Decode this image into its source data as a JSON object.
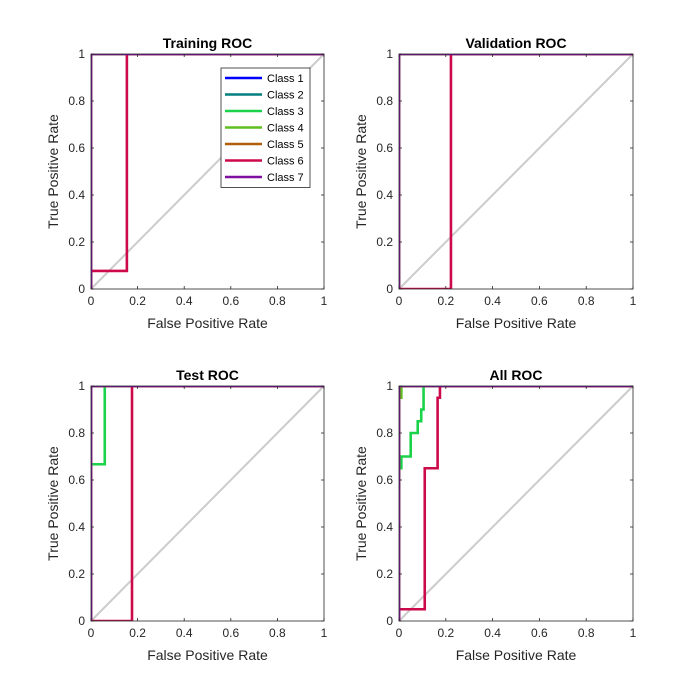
{
  "chart_data": [
    {
      "type": "line",
      "title": "Training ROC",
      "xlabel": "False Positive Rate",
      "ylabel": "True Positive Rate",
      "xlim": [
        0,
        1
      ],
      "ylim": [
        0,
        1
      ],
      "xticks": [
        "0",
        "0.2",
        "0.4",
        "0.6",
        "0.8",
        "1"
      ],
      "yticks": [
        "0",
        "0.2",
        "0.4",
        "0.6",
        "0.8",
        "1"
      ],
      "reference_line": {
        "x": [
          0,
          1
        ],
        "y": [
          0,
          1
        ],
        "color": "#cccccc"
      },
      "legend": {
        "placement": "top-right"
      },
      "series": [
        {
          "name": "Class 1",
          "color": "#0000ff",
          "x": [
            0,
            0,
            1
          ],
          "y": [
            0,
            1,
            1
          ]
        },
        {
          "name": "Class 2",
          "color": "#007f7f",
          "x": [
            0,
            0,
            1
          ],
          "y": [
            0,
            1,
            1
          ]
        },
        {
          "name": "Class 3",
          "color": "#1ad34a",
          "x": [
            0,
            0,
            1
          ],
          "y": [
            0,
            1,
            1
          ]
        },
        {
          "name": "Class 4",
          "color": "#5fbf1f",
          "x": [
            0,
            0,
            1
          ],
          "y": [
            0,
            1,
            1
          ]
        },
        {
          "name": "Class 5",
          "color": "#b0600c",
          "x": [
            0,
            0,
            1
          ],
          "y": [
            0,
            1,
            1
          ]
        },
        {
          "name": "Class 6",
          "color": "#cc0a4a",
          "x": [
            0,
            0,
            0.154,
            0.154,
            1
          ],
          "y": [
            0,
            0.077,
            0.077,
            1,
            1
          ]
        },
        {
          "name": "Class 7",
          "color": "#7f0f9f",
          "x": [
            0,
            0,
            1
          ],
          "y": [
            0,
            1,
            1
          ]
        }
      ]
    },
    {
      "type": "line",
      "title": "Validation ROC",
      "xlabel": "False Positive Rate",
      "ylabel": "True Positive Rate",
      "xlim": [
        0,
        1
      ],
      "ylim": [
        0,
        1
      ],
      "xticks": [
        "0",
        "0.2",
        "0.4",
        "0.6",
        "0.8",
        "1"
      ],
      "yticks": [
        "0",
        "0.2",
        "0.4",
        "0.6",
        "0.8",
        "1"
      ],
      "reference_line": {
        "x": [
          0,
          1
        ],
        "y": [
          0,
          1
        ],
        "color": "#cccccc"
      },
      "series": [
        {
          "name": "Class 1",
          "color": "#0000ff",
          "x": [
            0,
            0,
            1
          ],
          "y": [
            0,
            1,
            1
          ]
        },
        {
          "name": "Class 2",
          "color": "#007f7f",
          "x": [
            0,
            0,
            1
          ],
          "y": [
            0,
            1,
            1
          ]
        },
        {
          "name": "Class 3",
          "color": "#1ad34a",
          "x": [
            0,
            0,
            1
          ],
          "y": [
            0,
            1,
            1
          ]
        },
        {
          "name": "Class 4",
          "color": "#5fbf1f",
          "x": [
            0,
            0,
            1
          ],
          "y": [
            0,
            1,
            1
          ]
        },
        {
          "name": "Class 5",
          "color": "#b0600c",
          "x": [
            0,
            0,
            1
          ],
          "y": [
            0,
            1,
            1
          ]
        },
        {
          "name": "Class 6",
          "color": "#cc0a4a",
          "x": [
            0,
            0.222,
            0.222,
            1
          ],
          "y": [
            0,
            0,
            1,
            1
          ]
        },
        {
          "name": "Class 7",
          "color": "#7f0f9f",
          "x": [
            0,
            0,
            1
          ],
          "y": [
            0,
            1,
            1
          ]
        }
      ]
    },
    {
      "type": "line",
      "title": "Test ROC",
      "xlabel": "False Positive Rate",
      "ylabel": "True Positive Rate",
      "xlim": [
        0,
        1
      ],
      "ylim": [
        0,
        1
      ],
      "xticks": [
        "0",
        "0.2",
        "0.4",
        "0.6",
        "0.8",
        "1"
      ],
      "yticks": [
        "0",
        "0.2",
        "0.4",
        "0.6",
        "0.8",
        "1"
      ],
      "reference_line": {
        "x": [
          0,
          1
        ],
        "y": [
          0,
          1
        ],
        "color": "#cccccc"
      },
      "series": [
        {
          "name": "Class 1",
          "color": "#0000ff",
          "x": [
            0,
            0,
            1
          ],
          "y": [
            0,
            1,
            1
          ]
        },
        {
          "name": "Class 2",
          "color": "#007f7f",
          "x": [
            0,
            0,
            1
          ],
          "y": [
            0,
            1,
            1
          ]
        },
        {
          "name": "Class 3",
          "color": "#1ad34a",
          "x": [
            0,
            0,
            0.059,
            0.059,
            1
          ],
          "y": [
            0,
            0.667,
            0.667,
            1,
            1
          ]
        },
        {
          "name": "Class 4",
          "color": "#5fbf1f",
          "x": [
            0,
            0,
            1
          ],
          "y": [
            0,
            1,
            1
          ]
        },
        {
          "name": "Class 5",
          "color": "#b0600c",
          "x": [
            0,
            0,
            1
          ],
          "y": [
            0,
            1,
            1
          ]
        },
        {
          "name": "Class 6",
          "color": "#cc0a4a",
          "x": [
            0,
            0.176,
            0.176,
            1
          ],
          "y": [
            0,
            0,
            1,
            1
          ]
        },
        {
          "name": "Class 7",
          "color": "#7f0f9f",
          "x": [
            0,
            0,
            1
          ],
          "y": [
            0,
            1,
            1
          ]
        }
      ]
    },
    {
      "type": "line",
      "title": "All ROC",
      "xlabel": "False Positive Rate",
      "ylabel": "True Positive Rate",
      "xlim": [
        0,
        1
      ],
      "ylim": [
        0,
        1
      ],
      "xticks": [
        "0",
        "0.2",
        "0.4",
        "0.6",
        "0.8",
        "1"
      ],
      "yticks": [
        "0",
        "0.2",
        "0.4",
        "0.6",
        "0.8",
        "1"
      ],
      "reference_line": {
        "x": [
          0,
          1
        ],
        "y": [
          0,
          1
        ],
        "color": "#cccccc"
      },
      "series": [
        {
          "name": "Class 1",
          "color": "#0000ff",
          "x": [
            0,
            0,
            1
          ],
          "y": [
            0,
            1,
            1
          ]
        },
        {
          "name": "Class 2",
          "color": "#007f7f",
          "x": [
            0,
            0,
            1
          ],
          "y": [
            0,
            1,
            1
          ]
        },
        {
          "name": "Class 3",
          "color": "#1ad34a",
          "x": [
            0,
            0,
            0.01,
            0.01,
            0.05,
            0.05,
            0.08,
            0.08,
            0.095,
            0.095,
            0.105,
            0.105,
            1
          ],
          "y": [
            0,
            0.65,
            0.65,
            0.7,
            0.7,
            0.8,
            0.8,
            0.85,
            0.85,
            0.9,
            0.9,
            1,
            1
          ]
        },
        {
          "name": "Class 4",
          "color": "#5fbf1f",
          "x": [
            0,
            0,
            0.01,
            0.01,
            1
          ],
          "y": [
            0,
            0.95,
            0.95,
            1,
            1
          ]
        },
        {
          "name": "Class 5",
          "color": "#b0600c",
          "x": [
            0,
            0,
            1
          ],
          "y": [
            0,
            1,
            1
          ]
        },
        {
          "name": "Class 6",
          "color": "#cc0a4a",
          "x": [
            0,
            0,
            0.11,
            0.11,
            0.165,
            0.165,
            0.175,
            0.175,
            1
          ],
          "y": [
            0,
            0.05,
            0.05,
            0.65,
            0.65,
            0.95,
            0.95,
            1,
            1
          ]
        },
        {
          "name": "Class 7",
          "color": "#7f0f9f",
          "x": [
            0,
            0,
            1
          ],
          "y": [
            0,
            1,
            1
          ]
        }
      ]
    }
  ]
}
